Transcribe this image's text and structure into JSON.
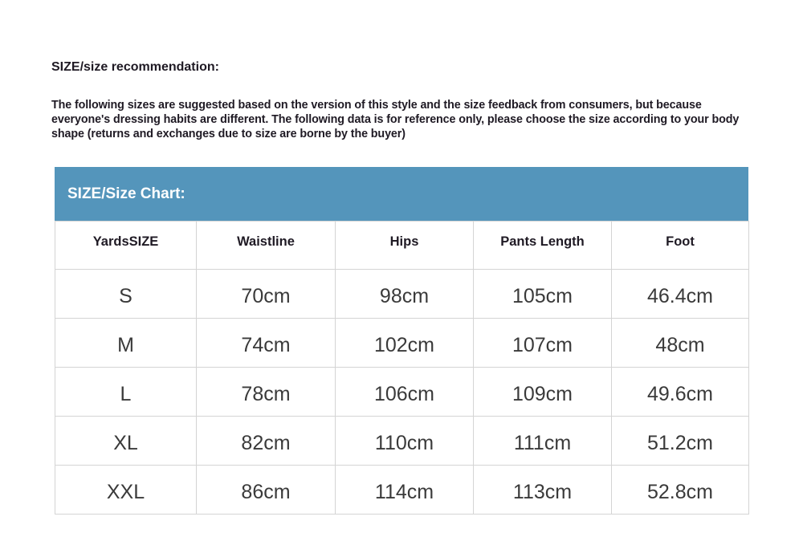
{
  "title": "SIZE/size recommendation:",
  "description": "The following sizes are suggested based on the version of this style and the size feedback from consumers, but because everyone's dressing habits are different. The following data is for reference only, please choose the size according to your body shape (returns and exchanges due to size are borne by the buyer)",
  "size_chart": {
    "heading": "SIZE/Size Chart:",
    "header_color": "#5495bb",
    "columns": [
      "YardsSIZE",
      "Waistline",
      "Hips",
      "Pants Length",
      "Foot"
    ],
    "rows": [
      [
        "S",
        "70cm",
        "98cm",
        "105cm",
        "46.4cm"
      ],
      [
        "M",
        "74cm",
        "102cm",
        "107cm",
        "48cm"
      ],
      [
        "L",
        "78cm",
        "106cm",
        "109cm",
        "49.6cm"
      ],
      [
        "XL",
        "82cm",
        "110cm",
        "111cm",
        "51.2cm"
      ],
      [
        "XXL",
        "86cm",
        "114cm",
        "113cm",
        "52.8cm"
      ]
    ]
  }
}
